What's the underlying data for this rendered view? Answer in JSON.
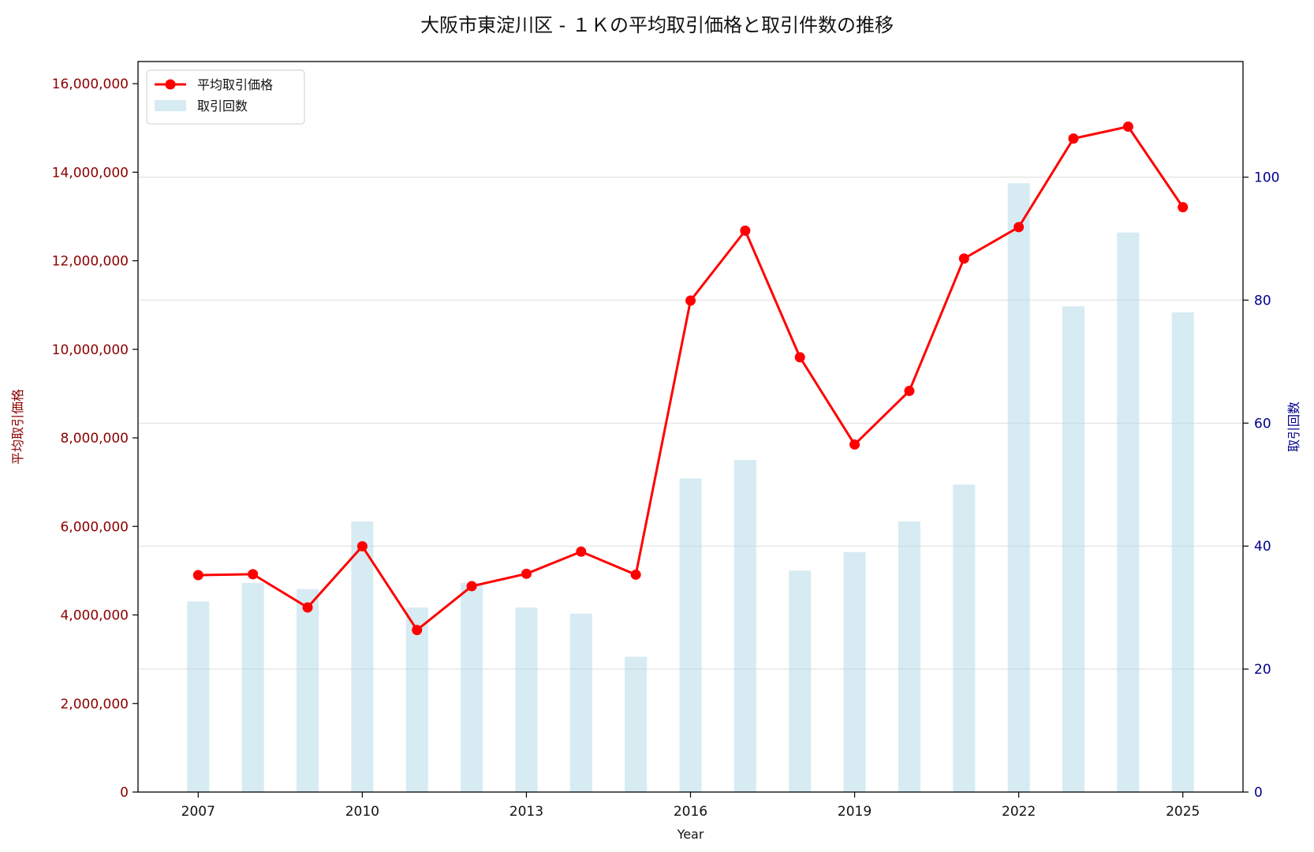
{
  "chart_data": {
    "type": "bar+line",
    "title": "大阪市東淀川区 - １Ｋの平均取引価格と取引件数の推移",
    "xlabel": "Year",
    "ylabel_left": "平均取引価格",
    "ylabel_right": "取引回数",
    "years": [
      2007,
      2008,
      2009,
      2010,
      2011,
      2012,
      2013,
      2014,
      2015,
      2016,
      2017,
      2018,
      2019,
      2020,
      2021,
      2022,
      2023,
      2024,
      2025
    ],
    "x_ticks": [
      "2007",
      "2010",
      "2013",
      "2016",
      "2019",
      "2022",
      "2025"
    ],
    "xlim": [
      2005.9,
      2026.1
    ],
    "series": [
      {
        "name": "平均取引価格",
        "type": "line",
        "axis": "left",
        "color": "#ff0000",
        "marker": "circle",
        "values": [
          4900000,
          4920000,
          4170000,
          5550000,
          3660000,
          4650000,
          4930000,
          5430000,
          4910000,
          11100000,
          12680000,
          9820000,
          7850000,
          9060000,
          12050000,
          12760000,
          14760000,
          15030000,
          13210000
        ]
      },
      {
        "name": "取引回数",
        "type": "bar",
        "axis": "right",
        "color": "#add8e6",
        "values": [
          31,
          34,
          33,
          44,
          30,
          34,
          30,
          29,
          22,
          51,
          54,
          36,
          39,
          44,
          50,
          99,
          79,
          91,
          78
        ]
      }
    ],
    "ylim_left": [
      0,
      16500000
    ],
    "yticks_left": [
      "0",
      "2,000,000",
      "4,000,000",
      "6,000,000",
      "8,000,000",
      "10,000,000",
      "12,000,000",
      "14,000,000",
      "16,000,000"
    ],
    "left_tick_color": "#8b0000",
    "ylim_right": [
      0,
      118.8
    ],
    "yticks_right": [
      "0",
      "20",
      "40",
      "60",
      "80",
      "100"
    ],
    "right_tick_color": "#00008b",
    "grid": true,
    "legend_position": "top-left"
  }
}
